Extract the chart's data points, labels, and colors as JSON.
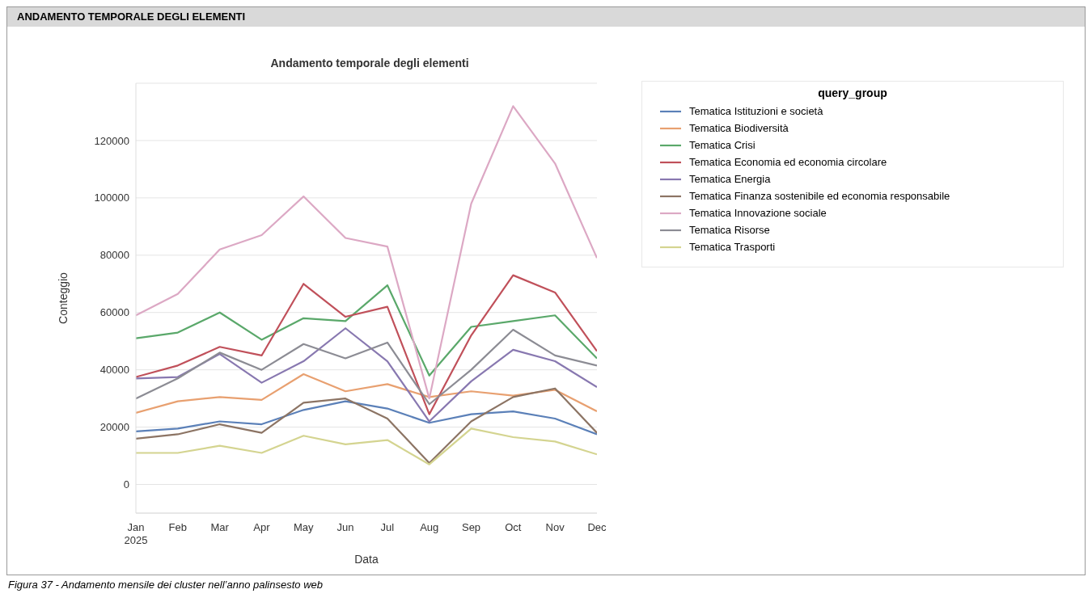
{
  "chart_data": {
    "type": "line",
    "title": "Andamento temporale degli elementi",
    "subtitle": "ANDAMENTO TEMPORALE DEGLI ELEMENTI",
    "xlabel": "Data",
    "ylabel": "Conteggio",
    "legend_title": "query_group",
    "legend": "top right",
    "grid": "y",
    "categories": [
      "Jan\n2025",
      "Feb",
      "Mar",
      "Apr",
      "May",
      "Jun",
      "Jul",
      "Aug",
      "Sep",
      "Oct",
      "Nov",
      "Dec"
    ],
    "ylim": [
      -10000,
      140000
    ],
    "yticks": [
      0,
      20000,
      40000,
      60000,
      80000,
      100000,
      120000
    ],
    "series": [
      {
        "name": "Tematica Istituzioni e società",
        "color": "#5b80b8",
        "values": [
          18500,
          19500,
          22000,
          21000,
          26000,
          29000,
          26500,
          21500,
          24500,
          25500,
          23000,
          17500
        ]
      },
      {
        "name": "Tematica Biodiversità",
        "color": "#e8a070",
        "values": [
          25000,
          29000,
          30500,
          29500,
          38500,
          32500,
          35000,
          30500,
          32500,
          31000,
          33000,
          25500
        ]
      },
      {
        "name": "Tematica Crisi",
        "color": "#5aa86a",
        "values": [
          51000,
          53000,
          60000,
          50500,
          58000,
          57000,
          69500,
          38000,
          55000,
          57000,
          59000,
          44000
        ]
      },
      {
        "name": "Tematica Economia ed economia circolare",
        "color": "#c0505a",
        "values": [
          37500,
          41500,
          48000,
          45000,
          70000,
          58500,
          62000,
          24500,
          52000,
          73000,
          67000,
          46500
        ]
      },
      {
        "name": "Tematica Energia",
        "color": "#8878b0",
        "values": [
          37000,
          37500,
          45500,
          35500,
          43000,
          54500,
          43000,
          22000,
          36000,
          47000,
          43000,
          34000
        ]
      },
      {
        "name": "Tematica Finanza sostenibile ed economia responsabile",
        "color": "#8c7464",
        "values": [
          16000,
          17500,
          21000,
          18000,
          28500,
          30000,
          23000,
          7500,
          22000,
          30500,
          33500,
          18000
        ]
      },
      {
        "name": "Tematica Innovazione sociale",
        "color": "#dca8c4",
        "values": [
          59000,
          66500,
          82000,
          87000,
          100500,
          86000,
          83000,
          30000,
          98000,
          132000,
          112000,
          79000
        ]
      },
      {
        "name": "Tematica Risorse",
        "color": "#8c8c94",
        "values": [
          30000,
          37000,
          46000,
          40000,
          49000,
          44000,
          49500,
          28000,
          40000,
          54000,
          45000,
          41500
        ]
      },
      {
        "name": "Tematica Trasporti",
        "color": "#d4d490",
        "values": [
          11000,
          11000,
          13500,
          11000,
          17000,
          14000,
          15500,
          7000,
          19500,
          16500,
          15000,
          10500
        ]
      }
    ],
    "annotations": [
      "Figura 37 -  Andamento mensile dei cluster nell’anno palinsesto web"
    ]
  }
}
